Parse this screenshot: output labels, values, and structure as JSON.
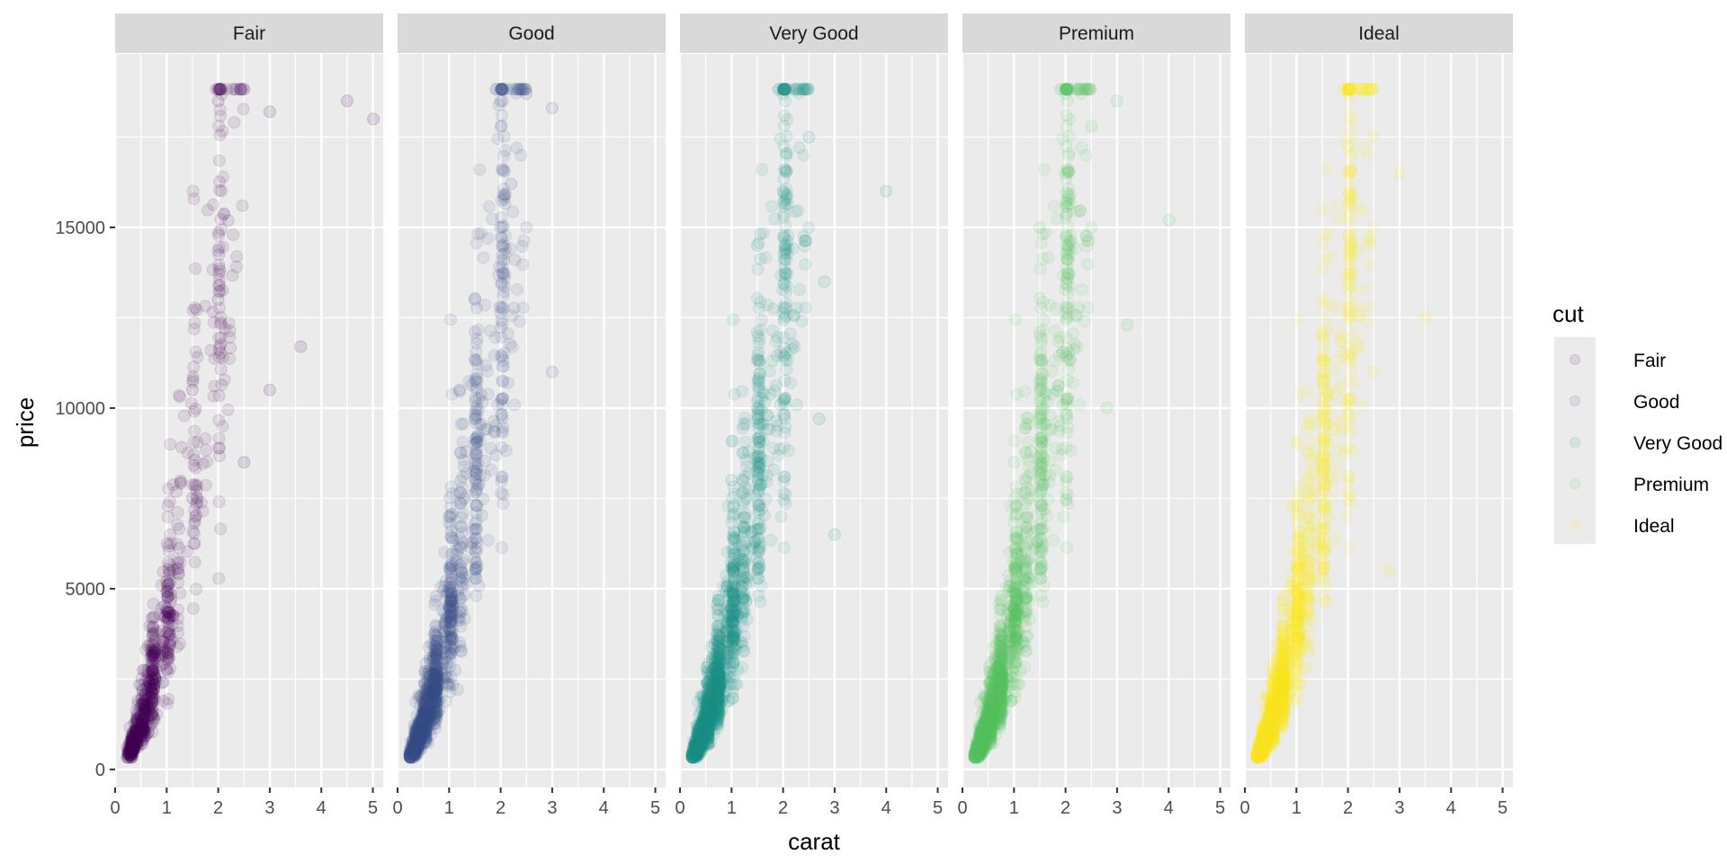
{
  "chart_data": {
    "type": "scatter",
    "facet_by": "cut",
    "xlabel": "carat",
    "ylabel": "price",
    "xlim": [
      0,
      5.2
    ],
    "ylim": [
      -500,
      19800
    ],
    "x_ticks": [
      0,
      1,
      2,
      3,
      4,
      5
    ],
    "x_tick_labels": [
      "0",
      "1",
      "2",
      "3",
      "4",
      "5"
    ],
    "y_ticks": [
      0,
      5000,
      10000,
      15000
    ],
    "y_tick_labels": [
      "0",
      "5000",
      "10000",
      "15000"
    ],
    "grid": true,
    "point_alpha": 0.1,
    "legend": {
      "title": "cut",
      "position": "right",
      "entries": [
        "Fair",
        "Good",
        "Very Good",
        "Premium",
        "Ideal"
      ]
    },
    "panels": [
      {
        "name": "Fair",
        "color": "#440154",
        "density": 0.45,
        "x_max": 5.01,
        "sample_points": [
          [
            0.25,
            450
          ],
          [
            0.5,
            1100
          ],
          [
            0.7,
            2200
          ],
          [
            1.0,
            3800
          ],
          [
            1.0,
            5200
          ],
          [
            1.5,
            7500
          ],
          [
            1.5,
            10500
          ],
          [
            2.0,
            13000
          ],
          [
            2.0,
            18500
          ],
          [
            3.0,
            18200
          ],
          [
            4.5,
            18500
          ],
          [
            5.01,
            18000
          ],
          [
            3.6,
            11700
          ],
          [
            3.0,
            10500
          ],
          [
            2.5,
            8500
          ]
        ]
      },
      {
        "name": "Good",
        "color": "#3B528B",
        "density": 0.75,
        "x_max": 3.0,
        "sample_points": [
          [
            0.3,
            500
          ],
          [
            0.5,
            1400
          ],
          [
            0.7,
            2500
          ],
          [
            1.0,
            4500
          ],
          [
            1.0,
            7000
          ],
          [
            1.5,
            9000
          ],
          [
            1.5,
            13000
          ],
          [
            2.0,
            15000
          ],
          [
            2.0,
            18500
          ],
          [
            2.5,
            18700
          ],
          [
            3.0,
            18300
          ],
          [
            3.0,
            11000
          ],
          [
            2.2,
            16200
          ],
          [
            1.2,
            10500
          ]
        ]
      },
      {
        "name": "Very Good",
        "color": "#21908C",
        "density": 1.0,
        "x_max": 4.0,
        "sample_points": [
          [
            0.3,
            500
          ],
          [
            0.5,
            1500
          ],
          [
            0.7,
            2700
          ],
          [
            1.0,
            4800
          ],
          [
            1.0,
            8000
          ],
          [
            1.5,
            10000
          ],
          [
            1.5,
            14500
          ],
          [
            2.0,
            16000
          ],
          [
            2.0,
            18700
          ],
          [
            2.5,
            17500
          ],
          [
            2.8,
            13500
          ],
          [
            4.0,
            16000
          ],
          [
            3.0,
            6500
          ],
          [
            2.7,
            9700
          ]
        ]
      },
      {
        "name": "Premium",
        "color": "#5DC863",
        "density": 1.0,
        "x_max": 4.01,
        "sample_points": [
          [
            0.3,
            500
          ],
          [
            0.5,
            1600
          ],
          [
            0.7,
            2900
          ],
          [
            1.0,
            5000
          ],
          [
            1.0,
            8500
          ],
          [
            1.5,
            10500
          ],
          [
            1.5,
            15000
          ],
          [
            2.0,
            16500
          ],
          [
            2.0,
            18700
          ],
          [
            2.5,
            17800
          ],
          [
            3.0,
            18500
          ],
          [
            4.01,
            15200
          ],
          [
            3.2,
            12300
          ],
          [
            2.8,
            10000
          ]
        ]
      },
      {
        "name": "Ideal",
        "color": "#FDE725",
        "density": 1.0,
        "x_max": 3.5,
        "sample_points": [
          [
            0.3,
            500
          ],
          [
            0.5,
            1700
          ],
          [
            0.7,
            3000
          ],
          [
            1.0,
            5200
          ],
          [
            1.0,
            9000
          ],
          [
            1.5,
            11000
          ],
          [
            1.5,
            15500
          ],
          [
            2.0,
            16500
          ],
          [
            2.0,
            18700
          ],
          [
            2.5,
            17500
          ],
          [
            3.0,
            16500
          ],
          [
            3.5,
            12500
          ],
          [
            2.8,
            5500
          ],
          [
            2.5,
            11000
          ]
        ]
      }
    ]
  }
}
